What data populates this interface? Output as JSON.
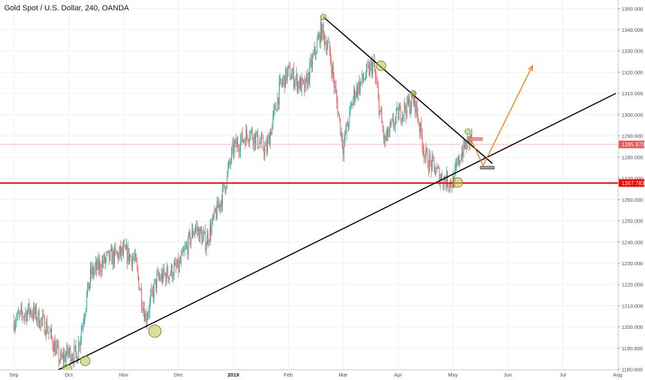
{
  "header": {
    "title": "Gold Spot / U.S. Dollar, 240, OANDA"
  },
  "colors": {
    "up": "#26a69a",
    "down": "#ef5350",
    "trendline": "#000000",
    "support": "#ff0000",
    "current_price_line": "#ef9a9a",
    "projection": "#f57c00",
    "marker_fill": "#b8c24a",
    "grid": "#eef0f3"
  },
  "chart_data": {
    "type": "candlestick",
    "symbol": "XAUUSD",
    "interval": "240",
    "source": "OANDA",
    "x_axis": {
      "labels": [
        "Sep",
        "Oct",
        "Nov",
        "Dec",
        "2019",
        "Feb",
        "Mar",
        "Apr",
        "May",
        "Jun",
        "Jul",
        "Aug"
      ],
      "bold_labels": [
        "2019"
      ]
    },
    "y_axis": {
      "range": [
        1175,
        1354
      ],
      "ticks": [
        "1180.000",
        "1190.000",
        "1200.000",
        "1210.000",
        "1220.000",
        "1230.000",
        "1240.000",
        "1250.000",
        "1260.000",
        "1270.000",
        "1280.000",
        "1290.000",
        "1300.000",
        "1310.000",
        "1320.000",
        "1330.000",
        "1340.000",
        "1350.000"
      ]
    },
    "price_labels": [
      {
        "label": "1285.970",
        "value": 1285.97,
        "color": "#ef5350"
      },
      {
        "label": "1267.783",
        "value": 1267.783,
        "color": "#ff0000"
      }
    ],
    "price_path": [
      {
        "month": 0.0,
        "price": 1203
      },
      {
        "month": 0.3,
        "price": 1208
      },
      {
        "month": 0.6,
        "price": 1200
      },
      {
        "month": 0.85,
        "price": 1184
      },
      {
        "month": 1.0,
        "price": 1188
      },
      {
        "month": 1.15,
        "price": 1187
      },
      {
        "month": 1.4,
        "price": 1225
      },
      {
        "month": 1.7,
        "price": 1232
      },
      {
        "month": 2.0,
        "price": 1235
      },
      {
        "month": 2.2,
        "price": 1232
      },
      {
        "month": 2.4,
        "price": 1204
      },
      {
        "month": 2.6,
        "price": 1222
      },
      {
        "month": 3.0,
        "price": 1228
      },
      {
        "month": 3.3,
        "price": 1247
      },
      {
        "month": 3.5,
        "price": 1240
      },
      {
        "month": 3.8,
        "price": 1262
      },
      {
        "month": 4.0,
        "price": 1284
      },
      {
        "month": 4.3,
        "price": 1292
      },
      {
        "month": 4.6,
        "price": 1283
      },
      {
        "month": 4.85,
        "price": 1313
      },
      {
        "month": 5.0,
        "price": 1320
      },
      {
        "month": 5.3,
        "price": 1312
      },
      {
        "month": 5.6,
        "price": 1340
      },
      {
        "month": 5.75,
        "price": 1330
      },
      {
        "month": 6.0,
        "price": 1285
      },
      {
        "month": 6.2,
        "price": 1310
      },
      {
        "month": 6.55,
        "price": 1324
      },
      {
        "month": 6.75,
        "price": 1287
      },
      {
        "month": 7.0,
        "price": 1300
      },
      {
        "month": 7.3,
        "price": 1307
      },
      {
        "month": 7.5,
        "price": 1280
      },
      {
        "month": 7.8,
        "price": 1270
      },
      {
        "month": 8.0,
        "price": 1268
      },
      {
        "month": 8.15,
        "price": 1282
      },
      {
        "month": 8.35,
        "price": 1290
      }
    ],
    "drawings": {
      "ascending_trendline": [
        {
          "month": 0.28,
          "price": 1173
        },
        {
          "month": 10.97,
          "price": 1310
        }
      ],
      "descending_trendline": [
        {
          "month": 5.64,
          "price": 1346
        },
        {
          "month": 8.72,
          "price": 1277
        }
      ],
      "support_level": 1267.783,
      "touch_points": [
        {
          "month": 0.97,
          "price": 1180,
          "size": "medium"
        },
        {
          "month": 1.3,
          "price": 1184,
          "size": "medium"
        },
        {
          "month": 2.57,
          "price": 1198,
          "size": "large"
        },
        {
          "month": 5.64,
          "price": 1346,
          "size": "small"
        },
        {
          "month": 6.69,
          "price": 1323,
          "size": "medium"
        },
        {
          "month": 7.28,
          "price": 1310,
          "size": "small"
        },
        {
          "month": 8.09,
          "price": 1268,
          "size": "medium"
        },
        {
          "month": 8.27,
          "price": 1292,
          "size": "small"
        }
      ],
      "projection_path": [
        {
          "month": 8.3,
          "price": 1290
        },
        {
          "month": 8.55,
          "price": 1276
        },
        {
          "month": 9.45,
          "price": 1323
        }
      ]
    }
  }
}
